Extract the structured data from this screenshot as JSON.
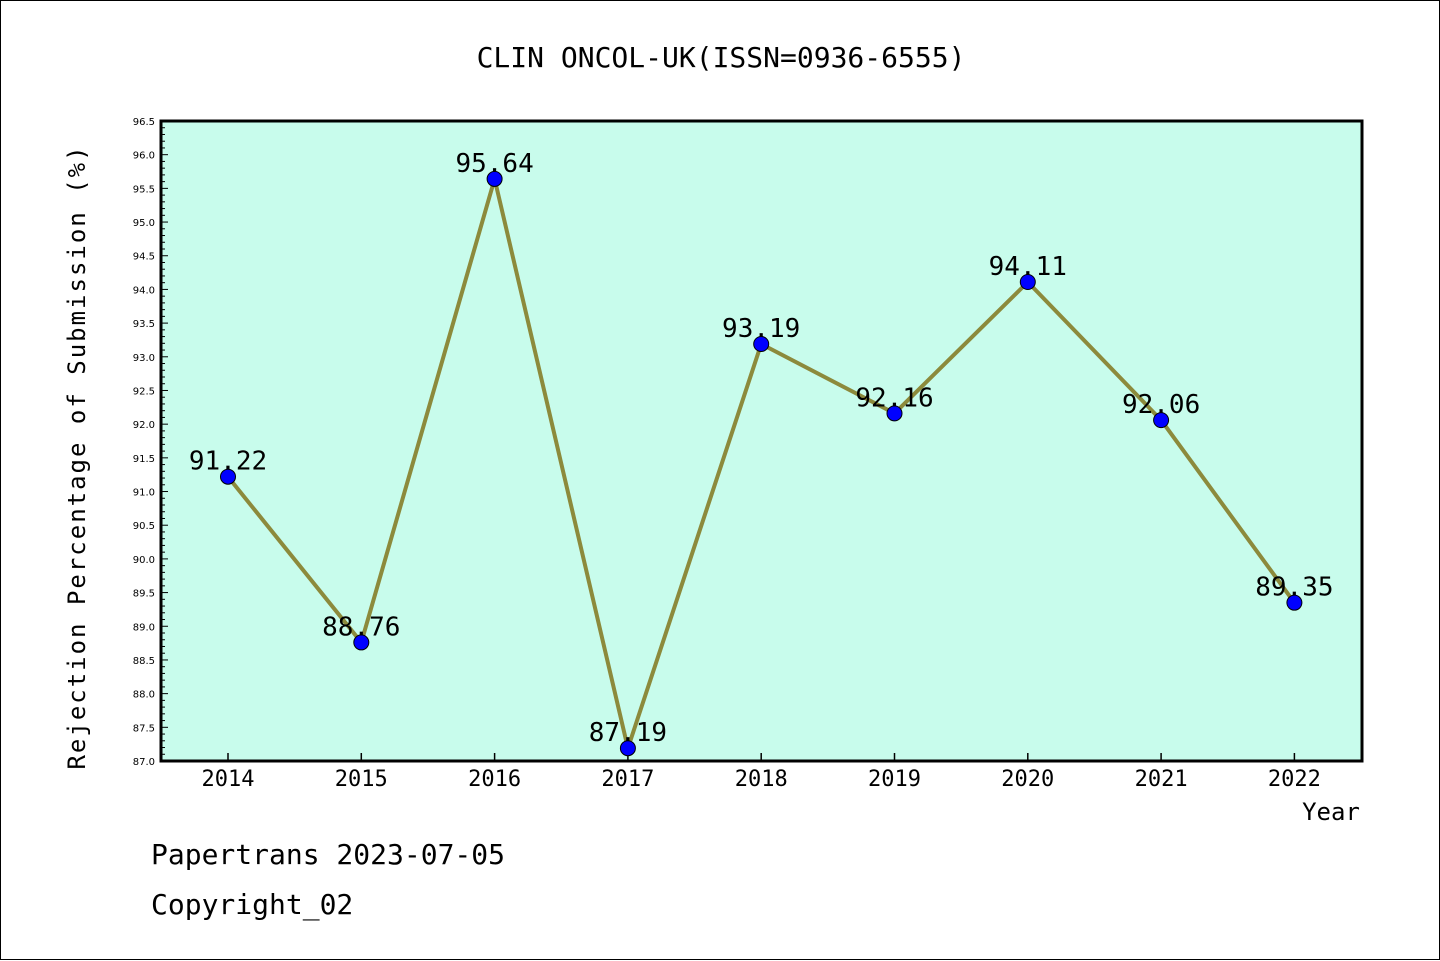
{
  "chart_data": {
    "type": "line",
    "title": "CLIN ONCOL-UK(ISSN=0936-6555)",
    "xlabel": "Year",
    "ylabel": "Rejection Percentage of Submission (%)",
    "categories": [
      "2014",
      "2015",
      "2016",
      "2017",
      "2018",
      "2019",
      "2020",
      "2021",
      "2022"
    ],
    "series": [
      {
        "values": [
          91.22,
          88.76,
          95.64,
          87.19,
          93.19,
          92.16,
          94.11,
          92.06,
          89.35
        ],
        "labels": [
          "91.22",
          "88.76",
          "95.64",
          "87.19",
          "93.19",
          "92.16",
          "94.11",
          "92.06",
          "89.35"
        ]
      }
    ],
    "ylim": [
      87.0,
      96.5
    ],
    "yticks": [
      "87.0",
      "87.5",
      "88.0",
      "88.5",
      "89.0",
      "89.5",
      "90.0",
      "90.5",
      "91.0",
      "91.5",
      "92.0",
      "92.5",
      "93.0",
      "93.5",
      "94.0",
      "94.5",
      "95.0",
      "95.5",
      "96.0",
      "96.5"
    ],
    "grid": false,
    "colors": {
      "plot_background": "#c8fcec",
      "line": "#8c8a3c",
      "marker": "#0000ff"
    }
  },
  "footer": {
    "line1": "Papertrans 2023-07-05",
    "line2": "Copyright_02"
  }
}
